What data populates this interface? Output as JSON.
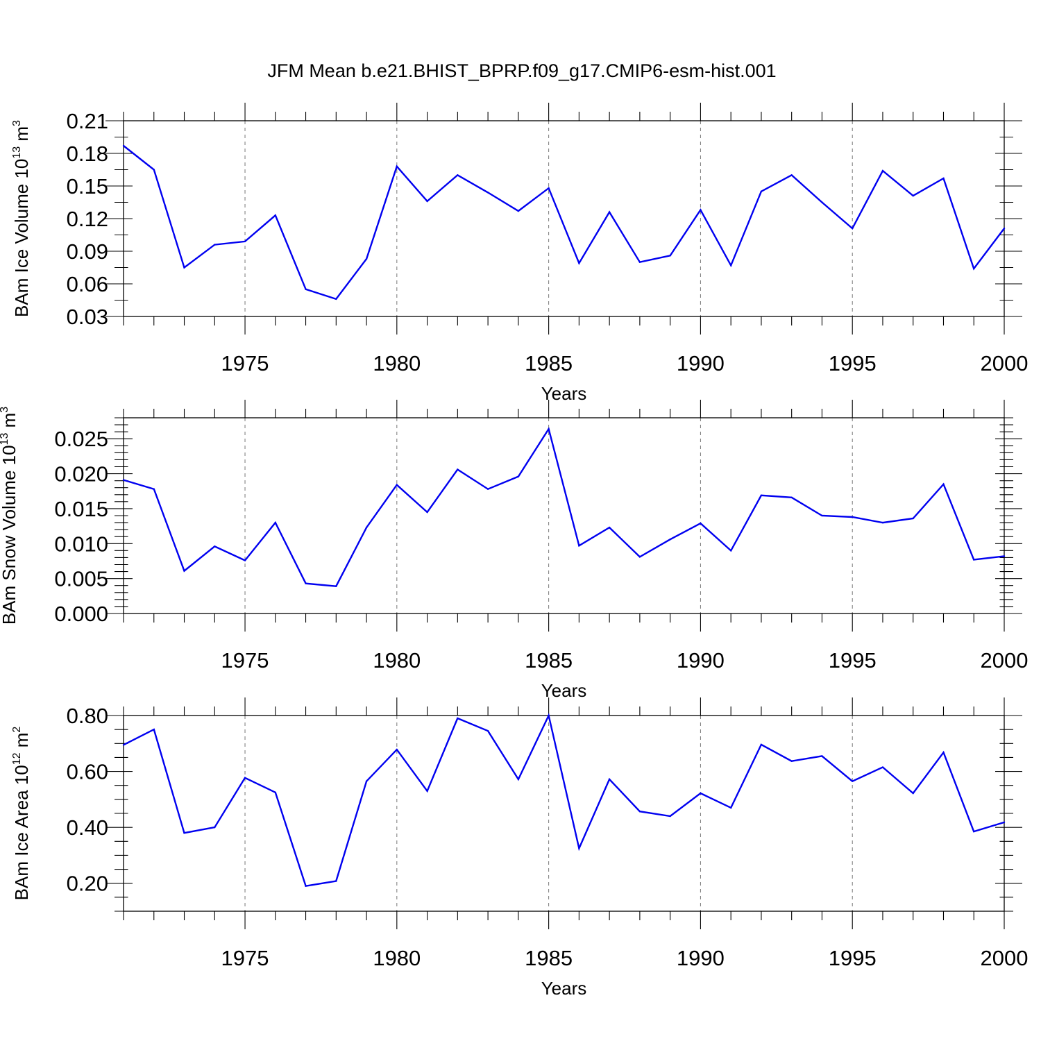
{
  "title": "JFM Mean b.e21.BHIST_BPRP.f09_g17.CMIP6-esm-hist.001",
  "colors": {
    "series": "#0000f0",
    "axis": "#000000",
    "grid": "#777777"
  },
  "chart_data": [
    {
      "type": "line",
      "name": "ice-volume",
      "ylabel_main": "BAm Ice Volume 10",
      "ylabel_exp": "13",
      "ylabel_unit": " m",
      "ylabel_unit_exp": "3",
      "xlabel": "Years",
      "xlim": [
        1971,
        2000
      ],
      "ylim": [
        0.03,
        0.21
      ],
      "yticks": [
        0.03,
        0.06,
        0.09,
        0.12,
        0.15,
        0.18,
        0.21
      ],
      "ytick_labels": [
        "0.03",
        "0.06",
        "0.09",
        "0.12",
        "0.15",
        "0.18",
        "0.21"
      ],
      "xticks": [
        1975,
        1980,
        1985,
        1990,
        1995,
        2000
      ],
      "xtick_labels": [
        "1975",
        "1980",
        "1985",
        "1990",
        "1995",
        "2000"
      ],
      "grid": "vertical dashed at major x ticks",
      "x": [
        1971,
        1972,
        1973,
        1974,
        1975,
        1976,
        1977,
        1978,
        1979,
        1980,
        1981,
        1982,
        1983,
        1984,
        1985,
        1986,
        1987,
        1988,
        1989,
        1990,
        1991,
        1992,
        1993,
        1994,
        1995,
        1996,
        1997,
        1998,
        1999,
        2000
      ],
      "values": [
        0.187,
        0.165,
        0.075,
        0.096,
        0.099,
        0.123,
        0.055,
        0.046,
        0.083,
        0.168,
        0.136,
        0.16,
        0.144,
        0.127,
        0.148,
        0.079,
        0.126,
        0.08,
        0.086,
        0.128,
        0.077,
        0.145,
        0.16,
        0.135,
        0.111,
        0.164,
        0.141,
        0.157,
        0.074,
        0.111
      ]
    },
    {
      "type": "line",
      "name": "snow-volume",
      "ylabel_main": "BAm Snow Volume 10",
      "ylabel_exp": "13",
      "ylabel_unit": " m",
      "ylabel_unit_exp": "3",
      "xlabel": "Years",
      "xlim": [
        1971,
        2000
      ],
      "ylim": [
        0.0,
        0.028
      ],
      "yticks": [
        0.0,
        0.005,
        0.01,
        0.015,
        0.02,
        0.025
      ],
      "ytick_labels": [
        "0.000",
        "0.005",
        "0.010",
        "0.015",
        "0.020",
        "0.025"
      ],
      "xticks": [
        1975,
        1980,
        1985,
        1990,
        1995,
        2000
      ],
      "xtick_labels": [
        "1975",
        "1980",
        "1985",
        "1990",
        "1995",
        "2000"
      ],
      "grid": "vertical dashed at major x ticks",
      "x": [
        1971,
        1972,
        1973,
        1974,
        1975,
        1976,
        1977,
        1978,
        1979,
        1980,
        1981,
        1982,
        1983,
        1984,
        1985,
        1986,
        1987,
        1988,
        1989,
        1990,
        1991,
        1992,
        1993,
        1994,
        1995,
        1996,
        1997,
        1998,
        1999,
        2000
      ],
      "values": [
        0.0191,
        0.0178,
        0.0061,
        0.0096,
        0.0076,
        0.013,
        0.0043,
        0.0039,
        0.0123,
        0.0184,
        0.0145,
        0.0206,
        0.0178,
        0.0196,
        0.0264,
        0.0097,
        0.0123,
        0.0081,
        0.0106,
        0.0129,
        0.009,
        0.0169,
        0.0166,
        0.014,
        0.0138,
        0.013,
        0.0136,
        0.0185,
        0.0077,
        0.0082
      ]
    },
    {
      "type": "line",
      "name": "ice-area",
      "ylabel_main": "BAm Ice Area 10",
      "ylabel_exp": "12",
      "ylabel_unit": " m",
      "ylabel_unit_exp": "2",
      "xlabel": "Years",
      "xlim": [
        1971,
        2000
      ],
      "ylim": [
        0.1,
        0.8
      ],
      "yticks": [
        0.2,
        0.4,
        0.6,
        0.8
      ],
      "ytick_labels": [
        "0.20",
        "0.40",
        "0.60",
        "0.80"
      ],
      "xticks": [
        1975,
        1980,
        1985,
        1990,
        1995,
        2000
      ],
      "xtick_labels": [
        "1975",
        "1980",
        "1985",
        "1990",
        "1995",
        "2000"
      ],
      "grid": "vertical dashed at major x ticks",
      "x": [
        1971,
        1972,
        1973,
        1974,
        1975,
        1976,
        1977,
        1978,
        1979,
        1980,
        1981,
        1982,
        1983,
        1984,
        1985,
        1986,
        1987,
        1988,
        1989,
        1990,
        1991,
        1992,
        1993,
        1994,
        1995,
        1996,
        1997,
        1998,
        1999,
        2000
      ],
      "values": [
        0.695,
        0.75,
        0.38,
        0.4,
        0.577,
        0.525,
        0.19,
        0.208,
        0.565,
        0.678,
        0.53,
        0.79,
        0.745,
        0.572,
        0.8,
        0.325,
        0.572,
        0.457,
        0.44,
        0.522,
        0.47,
        0.696,
        0.637,
        0.655,
        0.565,
        0.615,
        0.522,
        0.668,
        0.385,
        0.418
      ]
    }
  ]
}
